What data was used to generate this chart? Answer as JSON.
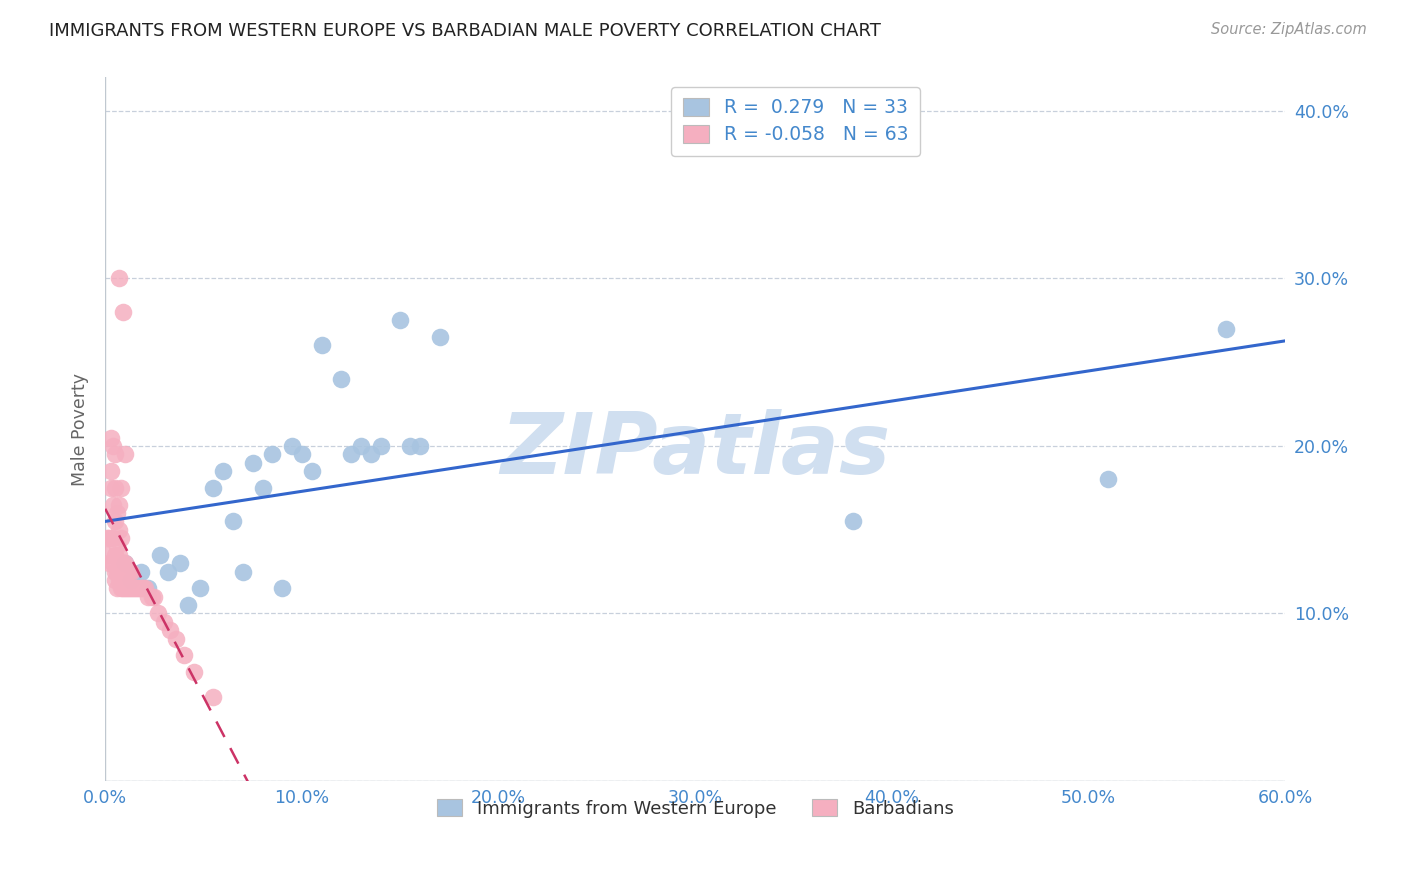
{
  "title": "IMMIGRANTS FROM WESTERN EUROPE VS BARBADIAN MALE POVERTY CORRELATION CHART",
  "source": "Source: ZipAtlas.com",
  "ylabel": "Male Poverty",
  "xlim": [
    0.0,
    0.6
  ],
  "ylim": [
    0.0,
    0.42
  ],
  "xticks": [
    0.0,
    0.1,
    0.2,
    0.3,
    0.4,
    0.5,
    0.6
  ],
  "xticklabels": [
    "0.0%",
    "10.0%",
    "20.0%",
    "30.0%",
    "40.0%",
    "50.0%",
    "60.0%"
  ],
  "yticks_right": [
    0.1,
    0.2,
    0.3,
    0.4
  ],
  "yticklabels_right": [
    "10.0%",
    "20.0%",
    "30.0%",
    "40.0%"
  ],
  "blue_R": 0.279,
  "blue_N": 33,
  "pink_R": -0.058,
  "pink_N": 63,
  "blue_color": "#a8c4e0",
  "pink_color": "#f5afc0",
  "blue_line_color": "#3366cc",
  "pink_line_color": "#cc3366",
  "watermark": "ZIPatlas",
  "watermark_color": "#d0dff0",
  "blue_scatter_x": [
    0.01,
    0.013,
    0.018,
    0.022,
    0.028,
    0.032,
    0.038,
    0.042,
    0.048,
    0.055,
    0.06,
    0.065,
    0.07,
    0.075,
    0.08,
    0.085,
    0.09,
    0.095,
    0.1,
    0.105,
    0.11,
    0.12,
    0.125,
    0.13,
    0.135,
    0.14,
    0.15,
    0.155,
    0.16,
    0.17,
    0.38,
    0.51,
    0.57
  ],
  "blue_scatter_y": [
    0.13,
    0.12,
    0.125,
    0.115,
    0.135,
    0.125,
    0.13,
    0.105,
    0.115,
    0.175,
    0.185,
    0.155,
    0.125,
    0.19,
    0.175,
    0.195,
    0.115,
    0.2,
    0.195,
    0.185,
    0.26,
    0.24,
    0.195,
    0.2,
    0.195,
    0.2,
    0.275,
    0.2,
    0.2,
    0.265,
    0.155,
    0.18,
    0.27
  ],
  "pink_scatter_x": [
    0.001,
    0.001,
    0.002,
    0.002,
    0.003,
    0.003,
    0.003,
    0.004,
    0.004,
    0.004,
    0.004,
    0.005,
    0.005,
    0.005,
    0.005,
    0.005,
    0.005,
    0.006,
    0.006,
    0.006,
    0.006,
    0.007,
    0.007,
    0.007,
    0.007,
    0.007,
    0.007,
    0.008,
    0.008,
    0.008,
    0.008,
    0.008,
    0.009,
    0.009,
    0.009,
    0.009,
    0.01,
    0.01,
    0.01,
    0.01,
    0.011,
    0.011,
    0.012,
    0.012,
    0.013,
    0.013,
    0.014,
    0.015,
    0.016,
    0.017,
    0.018,
    0.019,
    0.02,
    0.022,
    0.024,
    0.025,
    0.027,
    0.03,
    0.033,
    0.036,
    0.04,
    0.045,
    0.055
  ],
  "pink_scatter_y": [
    0.135,
    0.145,
    0.13,
    0.145,
    0.175,
    0.185,
    0.205,
    0.13,
    0.145,
    0.165,
    0.2,
    0.12,
    0.125,
    0.135,
    0.155,
    0.175,
    0.195,
    0.115,
    0.125,
    0.14,
    0.16,
    0.12,
    0.125,
    0.135,
    0.15,
    0.165,
    0.3,
    0.115,
    0.12,
    0.13,
    0.145,
    0.175,
    0.115,
    0.12,
    0.13,
    0.28,
    0.115,
    0.12,
    0.13,
    0.195,
    0.115,
    0.125,
    0.115,
    0.125,
    0.115,
    0.125,
    0.115,
    0.115,
    0.115,
    0.115,
    0.115,
    0.115,
    0.115,
    0.11,
    0.11,
    0.11,
    0.1,
    0.095,
    0.09,
    0.085,
    0.075,
    0.065,
    0.05
  ],
  "grid_color": "#c8d0dc",
  "tick_color": "#4488cc",
  "border_color": "#c0c8d0"
}
